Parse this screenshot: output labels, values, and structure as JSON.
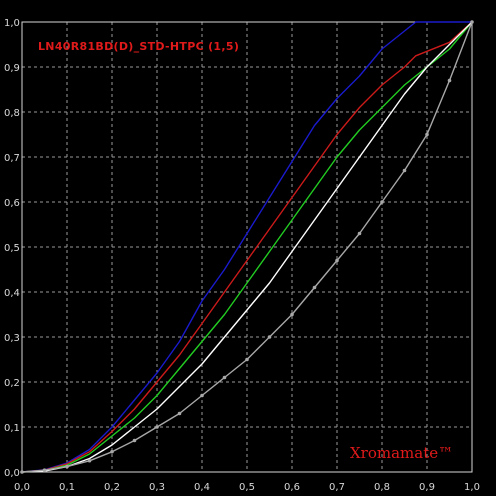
{
  "chart_data": {
    "type": "line",
    "title": "LN40R81BD(D)_STD-HTPC (1,5)",
    "watermark": "Xromamate™",
    "xlim": [
      0,
      1
    ],
    "ylim": [
      0,
      1
    ],
    "grid": true,
    "xticks": [
      "0,0",
      "0,1",
      "0,2",
      "0,3",
      "0,4",
      "0,5",
      "0,6",
      "0,7",
      "0,8",
      "0,9",
      "1,0"
    ],
    "yticks": [
      "0,0",
      "0,1",
      "0,2",
      "0,3",
      "0,4",
      "0,5",
      "0,6",
      "0,7",
      "0,8",
      "0,9",
      "1,0"
    ],
    "colors": {
      "background": "#000000",
      "grid": "#9a9a9a",
      "axis": "#d8d8d8",
      "title": "#e01a1a"
    },
    "series": [
      {
        "color": "#1a1acc",
        "markers": false,
        "points": [
          [
            0,
            0
          ],
          [
            0.05,
            0.005
          ],
          [
            0.1,
            0.02
          ],
          [
            0.15,
            0.05
          ],
          [
            0.2,
            0.1
          ],
          [
            0.25,
            0.16
          ],
          [
            0.3,
            0.22
          ],
          [
            0.35,
            0.29
          ],
          [
            0.4,
            0.38
          ],
          [
            0.45,
            0.45
          ],
          [
            0.5,
            0.53
          ],
          [
            0.55,
            0.61
          ],
          [
            0.6,
            0.69
          ],
          [
            0.65,
            0.77
          ],
          [
            0.7,
            0.83
          ],
          [
            0.75,
            0.88
          ],
          [
            0.8,
            0.94
          ],
          [
            0.85,
            0.98
          ],
          [
            0.875,
            1.0
          ],
          [
            0.9,
            1.0
          ],
          [
            0.95,
            1.0
          ],
          [
            1.0,
            1.0
          ]
        ]
      },
      {
        "color": "#cc1a1a",
        "markers": false,
        "points": [
          [
            0,
            0
          ],
          [
            0.05,
            0.004
          ],
          [
            0.1,
            0.018
          ],
          [
            0.15,
            0.045
          ],
          [
            0.2,
            0.09
          ],
          [
            0.25,
            0.14
          ],
          [
            0.3,
            0.2
          ],
          [
            0.35,
            0.26
          ],
          [
            0.4,
            0.33
          ],
          [
            0.45,
            0.4
          ],
          [
            0.5,
            0.47
          ],
          [
            0.55,
            0.54
          ],
          [
            0.6,
            0.61
          ],
          [
            0.65,
            0.68
          ],
          [
            0.7,
            0.75
          ],
          [
            0.75,
            0.81
          ],
          [
            0.8,
            0.86
          ],
          [
            0.85,
            0.9
          ],
          [
            0.875,
            0.925
          ],
          [
            0.9,
            0.935
          ],
          [
            0.95,
            0.955
          ],
          [
            1.0,
            1.0
          ]
        ]
      },
      {
        "color": "#22cc22",
        "markers": false,
        "points": [
          [
            0,
            0
          ],
          [
            0.05,
            0.003
          ],
          [
            0.1,
            0.015
          ],
          [
            0.15,
            0.04
          ],
          [
            0.2,
            0.08
          ],
          [
            0.25,
            0.12
          ],
          [
            0.3,
            0.17
          ],
          [
            0.35,
            0.23
          ],
          [
            0.4,
            0.29
          ],
          [
            0.45,
            0.35
          ],
          [
            0.5,
            0.42
          ],
          [
            0.55,
            0.49
          ],
          [
            0.6,
            0.56
          ],
          [
            0.65,
            0.63
          ],
          [
            0.7,
            0.7
          ],
          [
            0.75,
            0.76
          ],
          [
            0.8,
            0.81
          ],
          [
            0.85,
            0.86
          ],
          [
            0.9,
            0.9
          ],
          [
            0.95,
            0.94
          ],
          [
            1.0,
            1.0
          ]
        ]
      },
      {
        "color": "#ffffff",
        "markers": false,
        "points": [
          [
            0,
            0
          ],
          [
            0.05,
            0.002
          ],
          [
            0.1,
            0.012
          ],
          [
            0.15,
            0.03
          ],
          [
            0.2,
            0.06
          ],
          [
            0.25,
            0.1
          ],
          [
            0.3,
            0.14
          ],
          [
            0.35,
            0.19
          ],
          [
            0.4,
            0.24
          ],
          [
            0.45,
            0.3
          ],
          [
            0.5,
            0.36
          ],
          [
            0.55,
            0.42
          ],
          [
            0.6,
            0.49
          ],
          [
            0.65,
            0.56
          ],
          [
            0.7,
            0.63
          ],
          [
            0.75,
            0.7
          ],
          [
            0.8,
            0.77
          ],
          [
            0.85,
            0.84
          ],
          [
            0.9,
            0.9
          ],
          [
            0.95,
            0.95
          ],
          [
            1.0,
            1.0
          ]
        ]
      },
      {
        "color": "#a8a8a8",
        "markers": true,
        "points": [
          [
            0,
            0
          ],
          [
            0.05,
            0.004
          ],
          [
            0.1,
            0.012
          ],
          [
            0.15,
            0.025
          ],
          [
            0.2,
            0.045
          ],
          [
            0.25,
            0.07
          ],
          [
            0.3,
            0.1
          ],
          [
            0.35,
            0.13
          ],
          [
            0.4,
            0.17
          ],
          [
            0.45,
            0.21
          ],
          [
            0.5,
            0.25
          ],
          [
            0.55,
            0.3
          ],
          [
            0.6,
            0.35
          ],
          [
            0.65,
            0.41
          ],
          [
            0.7,
            0.47
          ],
          [
            0.75,
            0.53
          ],
          [
            0.8,
            0.6
          ],
          [
            0.85,
            0.67
          ],
          [
            0.9,
            0.75
          ],
          [
            0.95,
            0.87
          ],
          [
            1.0,
            1.0
          ]
        ]
      }
    ]
  }
}
